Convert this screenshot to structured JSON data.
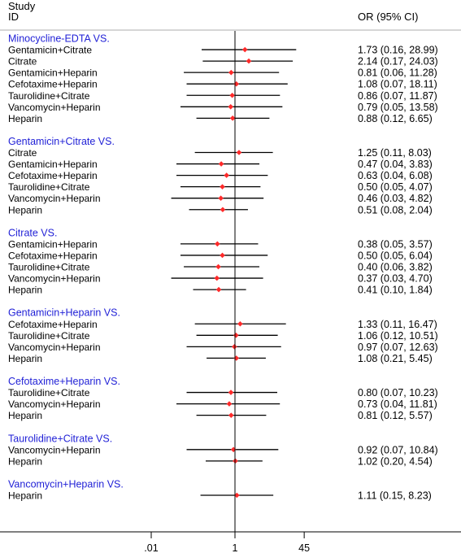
{
  "chart_data": {
    "type": "forest",
    "header": {
      "study_line1": "Study",
      "study_line2": "ID",
      "effect": "OR (95% CI)"
    },
    "x_scale": "log",
    "xlim": [
      0.004,
      400
    ],
    "reference_line": 1,
    "x_ticks": [
      {
        "value": 0.01,
        "label": ".01"
      },
      {
        "value": 1,
        "label": "1"
      },
      {
        "value": 45,
        "label": "45"
      }
    ],
    "marker_color": "#ff2a2a",
    "group_label_color": "#1f1fd6",
    "groups": [
      {
        "label": "Minocycline-EDTA VS.",
        "rows": [
          {
            "study": "Gentamicin+Citrate",
            "or": 1.73,
            "lo": 0.16,
            "hi": 28.99,
            "text": "1.73 (0.16, 28.99)"
          },
          {
            "study": "Citrate",
            "or": 2.14,
            "lo": 0.17,
            "hi": 24.03,
            "text": "2.14 (0.17, 24.03)"
          },
          {
            "study": "Gentamicin+Heparin",
            "or": 0.81,
            "lo": 0.06,
            "hi": 11.28,
            "text": "0.81 (0.06, 11.28)"
          },
          {
            "study": "Cefotaxime+Heparin",
            "or": 1.08,
            "lo": 0.07,
            "hi": 18.11,
            "text": "1.08 (0.07, 18.11)"
          },
          {
            "study": "Taurolidine+Citrate",
            "or": 0.86,
            "lo": 0.07,
            "hi": 11.87,
            "text": "0.86 (0.07, 11.87)"
          },
          {
            "study": "Vancomycin+Heparin",
            "or": 0.79,
            "lo": 0.05,
            "hi": 13.58,
            "text": "0.79 (0.05, 13.58)"
          },
          {
            "study": "Heparin",
            "or": 0.88,
            "lo": 0.12,
            "hi": 6.65,
            "text": "0.88 (0.12, 6.65)"
          }
        ]
      },
      {
        "label": "Gentamicin+Citrate VS.",
        "rows": [
          {
            "study": "Citrate",
            "or": 1.25,
            "lo": 0.11,
            "hi": 8.03,
            "text": "1.25 (0.11, 8.03)"
          },
          {
            "study": "Gentamicin+Heparin",
            "or": 0.47,
            "lo": 0.04,
            "hi": 3.83,
            "text": "0.47 (0.04, 3.83)"
          },
          {
            "study": "Cefotaxime+Heparin",
            "or": 0.63,
            "lo": 0.04,
            "hi": 6.08,
            "text": "0.63 (0.04, 6.08)"
          },
          {
            "study": "Taurolidine+Citrate",
            "or": 0.5,
            "lo": 0.05,
            "hi": 4.07,
            "text": "0.50 (0.05, 4.07)"
          },
          {
            "study": "Vancomycin+Heparin",
            "or": 0.46,
            "lo": 0.03,
            "hi": 4.82,
            "text": "0.46 (0.03, 4.82)"
          },
          {
            "study": "Heparin",
            "or": 0.51,
            "lo": 0.08,
            "hi": 2.04,
            "text": "0.51 (0.08, 2.04)"
          }
        ]
      },
      {
        "label": "Citrate VS.",
        "rows": [
          {
            "study": "Gentamicin+Heparin",
            "or": 0.38,
            "lo": 0.05,
            "hi": 3.57,
            "text": "0.38 (0.05, 3.57)"
          },
          {
            "study": "Cefotaxime+Heparin",
            "or": 0.5,
            "lo": 0.05,
            "hi": 6.04,
            "text": "0.50 (0.05, 6.04)"
          },
          {
            "study": "Taurolidine+Citrate",
            "or": 0.4,
            "lo": 0.06,
            "hi": 3.82,
            "text": "0.40 (0.06, 3.82)"
          },
          {
            "study": "Vancomycin+Heparin",
            "or": 0.37,
            "lo": 0.03,
            "hi": 4.7,
            "text": "0.37 (0.03, 4.70)"
          },
          {
            "study": "Heparin",
            "or": 0.41,
            "lo": 0.1,
            "hi": 1.84,
            "text": "0.41 (0.10, 1.84)"
          }
        ]
      },
      {
        "label": "Gentamicin+Heparin VS.",
        "rows": [
          {
            "study": "Cefotaxime+Heparin",
            "or": 1.33,
            "lo": 0.11,
            "hi": 16.47,
            "text": "1.33 (0.11, 16.47)"
          },
          {
            "study": "Taurolidine+Citrate",
            "or": 1.06,
            "lo": 0.12,
            "hi": 10.51,
            "text": "1.06 (0.12, 10.51)"
          },
          {
            "study": "Vancomycin+Heparin",
            "or": 0.97,
            "lo": 0.07,
            "hi": 12.63,
            "text": "0.97 (0.07, 12.63)"
          },
          {
            "study": "Heparin",
            "or": 1.08,
            "lo": 0.21,
            "hi": 5.45,
            "text": "1.08 (0.21, 5.45)"
          }
        ]
      },
      {
        "label": "Cefotaxime+Heparin VS.",
        "rows": [
          {
            "study": "Taurolidine+Citrate",
            "or": 0.8,
            "lo": 0.07,
            "hi": 10.23,
            "text": "0.80 (0.07, 10.23)"
          },
          {
            "study": "Vancomycin+Heparin",
            "or": 0.73,
            "lo": 0.04,
            "hi": 11.81,
            "text": "0.73 (0.04, 11.81)"
          },
          {
            "study": "Heparin",
            "or": 0.81,
            "lo": 0.12,
            "hi": 5.57,
            "text": "0.81 (0.12, 5.57)"
          }
        ]
      },
      {
        "label": "Taurolidine+Citrate VS.",
        "rows": [
          {
            "study": "Vancomycin+Heparin",
            "or": 0.92,
            "lo": 0.07,
            "hi": 10.84,
            "text": "0.92 (0.07, 10.84)"
          },
          {
            "study": "Heparin",
            "or": 1.02,
            "lo": 0.2,
            "hi": 4.54,
            "text": "1.02 (0.20, 4.54)"
          }
        ]
      },
      {
        "label": "Vancomycin+Heparin VS.",
        "rows": [
          {
            "study": "Heparin",
            "or": 1.11,
            "lo": 0.15,
            "hi": 8.23,
            "text": "1.11 (0.15, 8.23)"
          }
        ]
      }
    ]
  }
}
